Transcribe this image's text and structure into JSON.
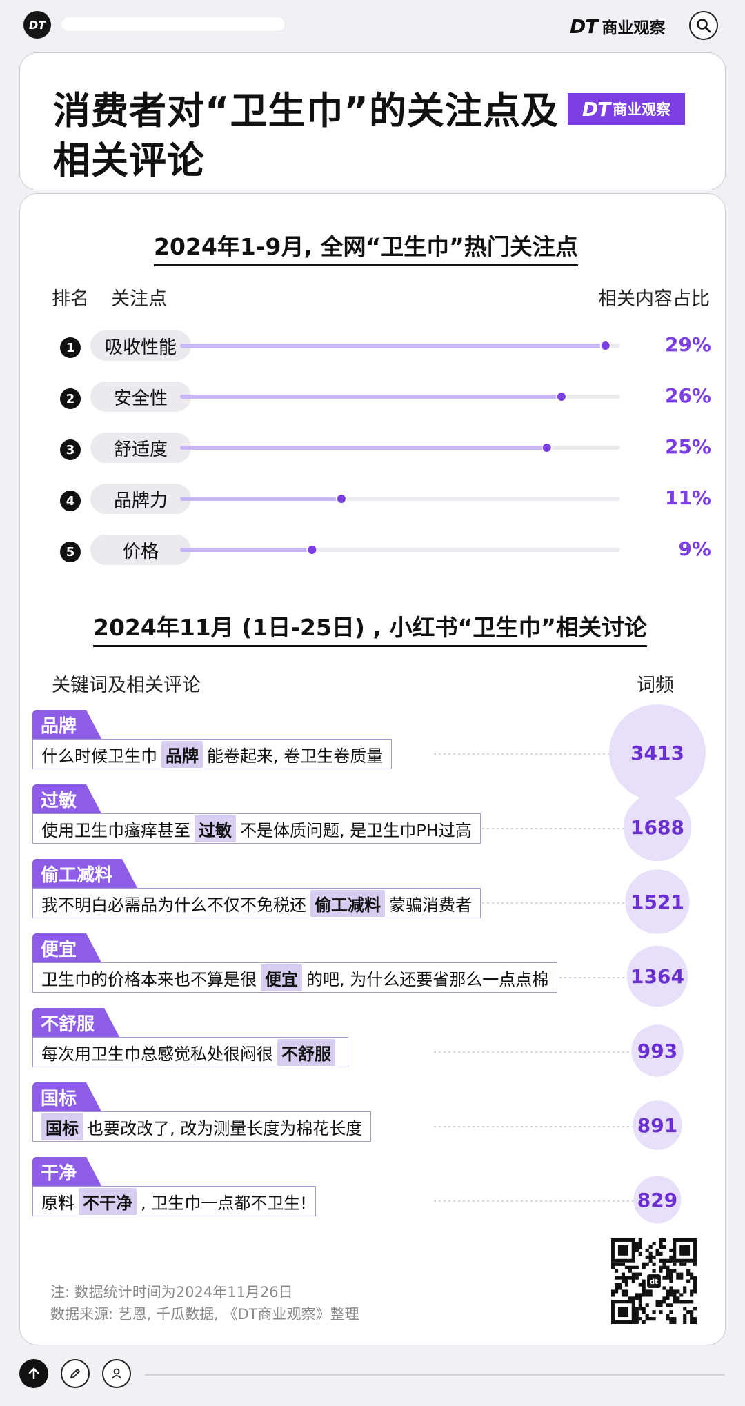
{
  "header": {
    "avatar_text": "DT",
    "brand_logo": "DT",
    "brand_name": "商业观察",
    "search_icon": "search-icon"
  },
  "title_card": {
    "title": "消费者对“卫生巾”的关注点及相关评论",
    "logo_dt": "DT",
    "logo_name": "商业观察"
  },
  "section1": {
    "title": "2024年1-9月, 全网“卫生巾”热门关注点",
    "col_rank": "排名",
    "col_focus": "关注点",
    "col_share": "相关内容占比"
  },
  "section2": {
    "title": "2024年11月 (1日-25日) , 小红书“卫生巾”相关讨论",
    "col_keyword": "关键词及相关评论",
    "col_freq": "词频"
  },
  "chart_data": [
    {
      "type": "bar",
      "title": "2024年1-9月, 全网“卫生巾”热门关注点",
      "categories": [
        "吸收性能",
        "安全性",
        "舒适度",
        "品牌力",
        "价格"
      ],
      "ranks": [
        "1",
        "2",
        "3",
        "4",
        "5"
      ],
      "values": [
        29,
        26,
        25,
        11,
        9
      ],
      "value_labels": [
        "29%",
        "26%",
        "25%",
        "11%",
        "9%"
      ],
      "ylabel": "相关内容占比",
      "accent": "#7b3fe4",
      "track": "#ebeaee",
      "fill": "#c9b6f4"
    },
    {
      "type": "bubble",
      "title": "2024年11月 (1日-25日) , 小红书“卫生巾”相关讨论",
      "categories": [
        "品牌",
        "过敏",
        "偷工减料",
        "便宜",
        "不舒服",
        "国标",
        "干净"
      ],
      "values": [
        3413,
        1688,
        1521,
        1364,
        993,
        891,
        829
      ],
      "value_labels": [
        "3413",
        "1688",
        "1521",
        "1364",
        "993",
        "891",
        "829"
      ],
      "ylabel": "词频",
      "bubble_color": "#e8dffb",
      "label_color": "#6a2fd1"
    }
  ],
  "keywords": [
    {
      "tag": "品牌",
      "before": "什么时候卫生巾",
      "hl": "品牌",
      "after": "能卷起来, 卷卫生卷质量"
    },
    {
      "tag": "过敏",
      "before": "使用卫生巾瘙痒甚至",
      "hl": "过敏",
      "after": "不是体质问题, 是卫生巾PH过高"
    },
    {
      "tag": "偷工减料",
      "before": "我不明白必需品为什么不仅不免税还",
      "hl": "偷工减料",
      "after": "蒙骗消费者"
    },
    {
      "tag": "便宜",
      "before": "卫生巾的价格本来也不算是很",
      "hl": "便宜",
      "after": "的吧, 为什么还要省那么一点点棉"
    },
    {
      "tag": "不舒服",
      "before": "每次用卫生巾总感觉私处很闷很",
      "hl": "不舒服",
      "after": ""
    },
    {
      "tag": "国标",
      "before": "",
      "hl": "国标",
      "after": "也要改改了, 改为测量长度为棉花长度"
    },
    {
      "tag": "干净",
      "before": "原料",
      "hl": "不干净",
      "after": ", 卫生巾一点都不卫生!"
    }
  ],
  "footer": {
    "note": "注: 数据统计时间为2024年11月26日",
    "source": "数据来源: 艺恩, 千瓜数据, 《DT商业观察》整理",
    "qr_center": "dt"
  },
  "bottom_bar": {
    "icons": [
      "up-arrow-icon",
      "pencil-icon",
      "user-icon"
    ]
  }
}
